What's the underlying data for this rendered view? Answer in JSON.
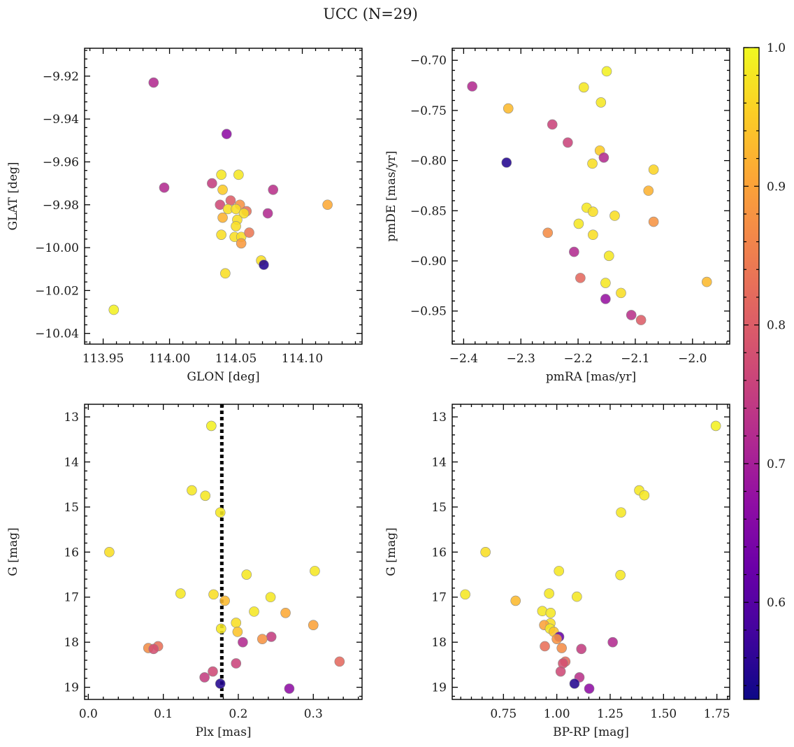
{
  "figure": {
    "title": "UCC (N=29)"
  },
  "colorbar": {
    "range": [
      0.53,
      1.0
    ],
    "ticks": [
      0.6,
      0.7,
      0.8,
      0.9,
      1.0
    ],
    "tick_labels": [
      "0.6",
      "0.7",
      "0.8",
      "0.9",
      "1.0"
    ],
    "colormap": "plasma"
  },
  "chart_data": [
    {
      "id": "glon-glat",
      "type": "scatter",
      "xlabel": "GLON [deg]",
      "ylabel": "GLAT [deg]",
      "xlim": [
        113.936,
        114.145
      ],
      "ylim": [
        -10.045,
        -9.907
      ],
      "yinvert": false,
      "xticks": [
        113.95,
        114.0,
        114.05,
        114.1
      ],
      "xtick_labels": [
        "113.95",
        "114.00",
        "114.05",
        "114.10"
      ],
      "yticks": [
        -9.92,
        -9.94,
        -9.96,
        -9.98,
        -10.0,
        -10.02,
        -10.04
      ],
      "ytick_labels": [
        "−9.92",
        "−9.94",
        "−9.96",
        "−9.98",
        "−10.00",
        "−10.02",
        "−10.04"
      ],
      "points": [
        {
          "x": 113.988,
          "y": -9.923,
          "c": 0.72
        },
        {
          "x": 114.043,
          "y": -9.947,
          "c": 0.67
        },
        {
          "x": 113.996,
          "y": -9.972,
          "c": 0.72
        },
        {
          "x": 114.032,
          "y": -9.97,
          "c": 0.75
        },
        {
          "x": 114.078,
          "y": -9.973,
          "c": 0.73
        },
        {
          "x": 114.039,
          "y": -9.966,
          "c": 0.98
        },
        {
          "x": 114.052,
          "y": -9.966,
          "c": 0.98
        },
        {
          "x": 114.04,
          "y": -9.973,
          "c": 0.95
        },
        {
          "x": 114.038,
          "y": -9.98,
          "c": 0.77
        },
        {
          "x": 114.046,
          "y": -9.978,
          "c": 0.8
        },
        {
          "x": 114.053,
          "y": -9.98,
          "c": 0.88
        },
        {
          "x": 114.044,
          "y": -9.982,
          "c": 0.97
        },
        {
          "x": 114.05,
          "y": -9.982,
          "c": 0.97
        },
        {
          "x": 114.058,
          "y": -9.983,
          "c": 0.83
        },
        {
          "x": 114.056,
          "y": -9.984,
          "c": 0.97
        },
        {
          "x": 114.074,
          "y": -9.984,
          "c": 0.72
        },
        {
          "x": 114.04,
          "y": -9.986,
          "c": 0.92
        },
        {
          "x": 114.051,
          "y": -9.987,
          "c": 0.97
        },
        {
          "x": 114.05,
          "y": -9.99,
          "c": 0.97
        },
        {
          "x": 114.039,
          "y": -9.994,
          "c": 0.97
        },
        {
          "x": 114.049,
          "y": -9.995,
          "c": 0.97
        },
        {
          "x": 114.054,
          "y": -9.995,
          "c": 0.97
        },
        {
          "x": 114.06,
          "y": -9.993,
          "c": 0.84
        },
        {
          "x": 114.054,
          "y": -9.998,
          "c": 0.89
        },
        {
          "x": 114.119,
          "y": -9.98,
          "c": 0.91
        },
        {
          "x": 114.069,
          "y": -10.006,
          "c": 0.97
        },
        {
          "x": 114.071,
          "y": -10.008,
          "c": 0.55
        },
        {
          "x": 114.042,
          "y": -10.012,
          "c": 0.97
        },
        {
          "x": 113.958,
          "y": -10.029,
          "c": 0.99
        }
      ]
    },
    {
      "id": "pm",
      "type": "scatter",
      "xlabel": "pmRA [mas/yr]",
      "ylabel": "pmDE [mas/yr]",
      "xlim": [
        -2.42,
        -1.935
      ],
      "ylim": [
        -0.983,
        -0.688
      ],
      "yinvert": false,
      "xticks": [
        -2.4,
        -2.3,
        -2.2,
        -2.1,
        -2.0
      ],
      "xtick_labels": [
        "−2.4",
        "−2.3",
        "−2.2",
        "−2.1",
        "−2.0"
      ],
      "yticks": [
        -0.7,
        -0.75,
        -0.8,
        -0.85,
        -0.9,
        -0.95
      ],
      "ytick_labels": [
        "−0.70",
        "−0.75",
        "−0.80",
        "−0.85",
        "−0.90",
        "−0.95"
      ],
      "points": [
        {
          "x": -2.385,
          "y": -0.726,
          "c": 0.72
        },
        {
          "x": -2.15,
          "y": -0.711,
          "c": 0.99
        },
        {
          "x": -2.19,
          "y": -0.727,
          "c": 0.98
        },
        {
          "x": -2.322,
          "y": -0.748,
          "c": 0.93
        },
        {
          "x": -2.16,
          "y": -0.742,
          "c": 0.98
        },
        {
          "x": -2.245,
          "y": -0.764,
          "c": 0.76
        },
        {
          "x": -2.218,
          "y": -0.782,
          "c": 0.76
        },
        {
          "x": -2.162,
          "y": -0.79,
          "c": 0.95
        },
        {
          "x": -2.155,
          "y": -0.797,
          "c": 0.72
        },
        {
          "x": -2.175,
          "y": -0.803,
          "c": 0.97
        },
        {
          "x": -2.325,
          "y": -0.802,
          "c": 0.55
        },
        {
          "x": -2.068,
          "y": -0.809,
          "c": 0.96
        },
        {
          "x": -2.077,
          "y": -0.83,
          "c": 0.92
        },
        {
          "x": -2.185,
          "y": -0.847,
          "c": 0.98
        },
        {
          "x": -2.174,
          "y": -0.851,
          "c": 0.97
        },
        {
          "x": -2.136,
          "y": -0.855,
          "c": 0.97
        },
        {
          "x": -2.068,
          "y": -0.861,
          "c": 0.88
        },
        {
          "x": -2.199,
          "y": -0.863,
          "c": 0.98
        },
        {
          "x": -2.253,
          "y": -0.872,
          "c": 0.87
        },
        {
          "x": -2.174,
          "y": -0.874,
          "c": 0.97
        },
        {
          "x": -2.207,
          "y": -0.891,
          "c": 0.72
        },
        {
          "x": -2.146,
          "y": -0.895,
          "c": 0.98
        },
        {
          "x": -2.196,
          "y": -0.917,
          "c": 0.82
        },
        {
          "x": -2.152,
          "y": -0.922,
          "c": 0.98
        },
        {
          "x": -1.975,
          "y": -0.921,
          "c": 0.93
        },
        {
          "x": -2.125,
          "y": -0.932,
          "c": 0.97
        },
        {
          "x": -2.152,
          "y": -0.938,
          "c": 0.68
        },
        {
          "x": -2.107,
          "y": -0.954,
          "c": 0.73
        },
        {
          "x": -2.09,
          "y": -0.959,
          "c": 0.8
        }
      ]
    },
    {
      "id": "plx-g",
      "type": "scatter",
      "xlabel": "Plx [mas]",
      "ylabel": "G [mag]",
      "xlim": [
        -0.005,
        0.365
      ],
      "ylim": [
        12.72,
        19.27
      ],
      "yinvert": true,
      "vline": {
        "x": 0.178,
        "style": "dotted"
      },
      "xticks": [
        0.0,
        0.1,
        0.2,
        0.3
      ],
      "xtick_labels": [
        "0.0",
        "0.1",
        "0.2",
        "0.3"
      ],
      "yticks": [
        13,
        14,
        15,
        16,
        17,
        18,
        19
      ],
      "ytick_labels": [
        "13",
        "14",
        "15",
        "16",
        "17",
        "18",
        "19"
      ],
      "points": [
        {
          "x": 0.164,
          "y": 13.2,
          "c": 0.99
        },
        {
          "x": 0.138,
          "y": 14.63,
          "c": 0.98
        },
        {
          "x": 0.156,
          "y": 14.75,
          "c": 0.98
        },
        {
          "x": 0.176,
          "y": 15.12,
          "c": 0.98
        },
        {
          "x": 0.028,
          "y": 16.0,
          "c": 0.97
        },
        {
          "x": 0.302,
          "y": 16.42,
          "c": 0.98
        },
        {
          "x": 0.211,
          "y": 16.5,
          "c": 0.98
        },
        {
          "x": 0.123,
          "y": 16.92,
          "c": 0.98
        },
        {
          "x": 0.167,
          "y": 16.94,
          "c": 0.97
        },
        {
          "x": 0.243,
          "y": 17.0,
          "c": 0.98
        },
        {
          "x": 0.182,
          "y": 17.08,
          "c": 0.93
        },
        {
          "x": 0.221,
          "y": 17.32,
          "c": 0.98
        },
        {
          "x": 0.263,
          "y": 17.35,
          "c": 0.91
        },
        {
          "x": 0.197,
          "y": 17.57,
          "c": 0.97
        },
        {
          "x": 0.3,
          "y": 17.62,
          "c": 0.9
        },
        {
          "x": 0.177,
          "y": 17.7,
          "c": 0.98
        },
        {
          "x": 0.199,
          "y": 17.77,
          "c": 0.94
        },
        {
          "x": 0.244,
          "y": 17.88,
          "c": 0.75
        },
        {
          "x": 0.232,
          "y": 17.93,
          "c": 0.88
        },
        {
          "x": 0.206,
          "y": 18.0,
          "c": 0.72
        },
        {
          "x": 0.093,
          "y": 18.09,
          "c": 0.83
        },
        {
          "x": 0.08,
          "y": 18.13,
          "c": 0.87
        },
        {
          "x": 0.087,
          "y": 18.15,
          "c": 0.78
        },
        {
          "x": 0.335,
          "y": 18.43,
          "c": 0.82
        },
        {
          "x": 0.197,
          "y": 18.47,
          "c": 0.76
        },
        {
          "x": 0.166,
          "y": 18.65,
          "c": 0.77
        },
        {
          "x": 0.155,
          "y": 18.78,
          "c": 0.75
        },
        {
          "x": 0.176,
          "y": 18.92,
          "c": 0.55
        },
        {
          "x": 0.268,
          "y": 19.03,
          "c": 0.67
        }
      ]
    },
    {
      "id": "cmd",
      "type": "scatter",
      "xlabel": "BP-RP [mag]",
      "ylabel": "G [mag]",
      "xlim": [
        0.51,
        1.81
      ],
      "ylim": [
        12.72,
        19.27
      ],
      "yinvert": true,
      "xticks": [
        0.75,
        1.0,
        1.25,
        1.5,
        1.75
      ],
      "xtick_labels": [
        "0.75",
        "1.00",
        "1.25",
        "1.50",
        "1.75"
      ],
      "yticks": [
        13,
        14,
        15,
        16,
        17,
        18,
        19
      ],
      "ytick_labels": [
        "13",
        "14",
        "15",
        "16",
        "17",
        "18",
        "19"
      ],
      "points": [
        {
          "x": 1.745,
          "y": 13.2,
          "c": 0.99
        },
        {
          "x": 1.386,
          "y": 14.63,
          "c": 0.98
        },
        {
          "x": 1.41,
          "y": 14.74,
          "c": 0.98
        },
        {
          "x": 1.301,
          "y": 15.12,
          "c": 0.98
        },
        {
          "x": 0.666,
          "y": 16.0,
          "c": 0.97
        },
        {
          "x": 1.01,
          "y": 16.42,
          "c": 0.98
        },
        {
          "x": 1.298,
          "y": 16.51,
          "c": 0.98
        },
        {
          "x": 0.571,
          "y": 16.94,
          "c": 0.98
        },
        {
          "x": 0.964,
          "y": 16.92,
          "c": 0.98
        },
        {
          "x": 1.094,
          "y": 16.99,
          "c": 0.98
        },
        {
          "x": 0.807,
          "y": 17.08,
          "c": 0.93
        },
        {
          "x": 0.932,
          "y": 17.31,
          "c": 0.98
        },
        {
          "x": 0.971,
          "y": 17.35,
          "c": 0.98
        },
        {
          "x": 0.97,
          "y": 17.58,
          "c": 0.97
        },
        {
          "x": 0.941,
          "y": 17.62,
          "c": 0.9
        },
        {
          "x": 0.968,
          "y": 17.7,
          "c": 0.98
        },
        {
          "x": 0.986,
          "y": 17.77,
          "c": 0.94
        },
        {
          "x": 1.011,
          "y": 17.88,
          "c": 0.62
        },
        {
          "x": 1.0,
          "y": 17.93,
          "c": 0.88
        },
        {
          "x": 1.262,
          "y": 18.0,
          "c": 0.72
        },
        {
          "x": 0.944,
          "y": 18.09,
          "c": 0.83
        },
        {
          "x": 1.023,
          "y": 18.13,
          "c": 0.87
        },
        {
          "x": 1.115,
          "y": 18.15,
          "c": 0.75
        },
        {
          "x": 1.04,
          "y": 18.43,
          "c": 0.82
        },
        {
          "x": 1.029,
          "y": 18.47,
          "c": 0.78
        },
        {
          "x": 1.018,
          "y": 18.65,
          "c": 0.77
        },
        {
          "x": 1.106,
          "y": 18.78,
          "c": 0.73
        },
        {
          "x": 1.083,
          "y": 18.92,
          "c": 0.55
        },
        {
          "x": 1.152,
          "y": 19.03,
          "c": 0.67
        }
      ]
    }
  ]
}
